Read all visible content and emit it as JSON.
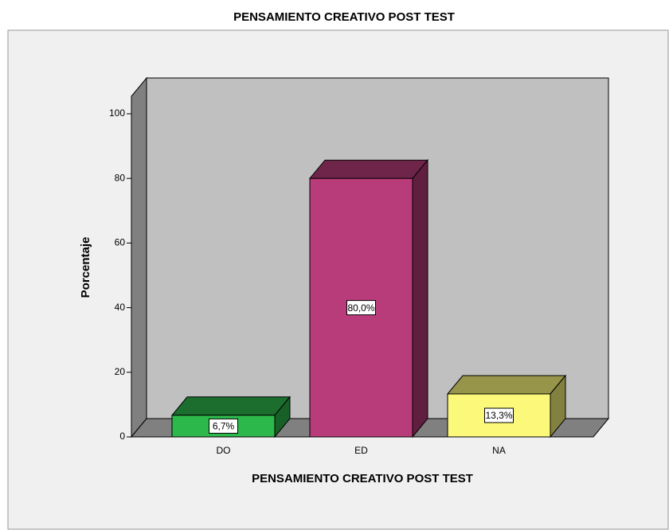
{
  "chart_data": {
    "type": "bar3d",
    "title": "PENSAMIENTO CREATIVO POST TEST",
    "x_label": "PENSAMIENTO CREATIVO POST TEST",
    "y_label": "Porcentaje",
    "categories": [
      "DO",
      "ED",
      "NA"
    ],
    "values": [
      6.7,
      80.0,
      13.3
    ],
    "value_labels": [
      "6,7%",
      "80,0%",
      "13,3%"
    ],
    "colors": [
      "#2db84b",
      "#b93c7a",
      "#fbf87a"
    ],
    "ylim": [
      0,
      100
    ],
    "yticks": [
      0,
      20,
      40,
      60,
      80,
      100
    ]
  }
}
